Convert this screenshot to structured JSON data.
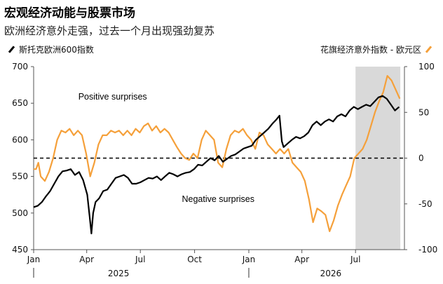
{
  "title": "宏观经济动能与股票市场",
  "subtitle": "欧洲经济意外走强，过去一个月出现强劲复苏",
  "legend": {
    "left_label": "斯托克欧洲600指数",
    "right_label": "花旗经济意外指数 - 欧元区"
  },
  "colors": {
    "stoxx": "#000000",
    "citi": "#f5a03a",
    "shade": "#d9d9d9",
    "zero_line": "#000000"
  },
  "chart_data": {
    "type": "line",
    "x_tick_labels": [
      "Jan",
      "Apr",
      "Jul",
      "Oct",
      "Jan",
      "Apr",
      "Jul"
    ],
    "x_tick_dates": [
      "2025-01-01",
      "2025-04-01",
      "2025-07-01",
      "2025-10-01",
      "2026-01-01",
      "2026-04-01",
      "2026-07-01"
    ],
    "year_labels": [
      "2025",
      "2026"
    ],
    "y_left": {
      "ticks": [
        450,
        500,
        550,
        600,
        650,
        700
      ],
      "range": [
        450,
        700
      ]
    },
    "y_right": {
      "ticks": [
        -100,
        -50,
        0,
        50,
        100
      ],
      "range": [
        -100,
        100
      ]
    },
    "shaded_period": [
      "2026-07-01",
      "2026-09-15"
    ],
    "reference_line": {
      "axis": "right",
      "value": 0,
      "style": "dashed"
    },
    "annotations": [
      {
        "text": "Positive surprises",
        "x": "2025-05-15",
        "y_right": 64
      },
      {
        "text": "Negative surprises",
        "x": "2025-11-10",
        "y_right": -48
      }
    ],
    "series": [
      {
        "name": "斯托克欧洲600指数",
        "axis": "left",
        "points": [
          [
            "2025-01-01",
            508
          ],
          [
            "2025-01-08",
            510
          ],
          [
            "2025-01-15",
            515
          ],
          [
            "2025-01-22",
            523
          ],
          [
            "2025-01-29",
            530
          ],
          [
            "2025-02-05",
            540
          ],
          [
            "2025-02-12",
            550
          ],
          [
            "2025-02-19",
            557
          ],
          [
            "2025-02-26",
            558
          ],
          [
            "2025-03-05",
            560
          ],
          [
            "2025-03-12",
            552
          ],
          [
            "2025-03-19",
            556
          ],
          [
            "2025-03-26",
            545
          ],
          [
            "2025-04-02",
            525
          ],
          [
            "2025-04-06",
            495
          ],
          [
            "2025-04-09",
            472
          ],
          [
            "2025-04-12",
            500
          ],
          [
            "2025-04-16",
            515
          ],
          [
            "2025-04-22",
            520
          ],
          [
            "2025-04-29",
            530
          ],
          [
            "2025-05-06",
            532
          ],
          [
            "2025-05-13",
            540
          ],
          [
            "2025-05-20",
            548
          ],
          [
            "2025-05-27",
            550
          ],
          [
            "2025-06-03",
            552
          ],
          [
            "2025-06-10",
            548
          ],
          [
            "2025-06-17",
            540
          ],
          [
            "2025-06-24",
            540
          ],
          [
            "2025-07-01",
            542
          ],
          [
            "2025-07-08",
            545
          ],
          [
            "2025-07-15",
            548
          ],
          [
            "2025-07-22",
            547
          ],
          [
            "2025-07-29",
            550
          ],
          [
            "2025-08-05",
            545
          ],
          [
            "2025-08-12",
            550
          ],
          [
            "2025-08-19",
            555
          ],
          [
            "2025-08-26",
            553
          ],
          [
            "2025-09-02",
            550
          ],
          [
            "2025-09-09",
            553
          ],
          [
            "2025-09-16",
            555
          ],
          [
            "2025-09-23",
            556
          ],
          [
            "2025-09-30",
            560
          ],
          [
            "2025-10-07",
            566
          ],
          [
            "2025-10-14",
            565
          ],
          [
            "2025-10-21",
            570
          ],
          [
            "2025-10-28",
            575
          ],
          [
            "2025-11-04",
            572
          ],
          [
            "2025-11-11",
            578
          ],
          [
            "2025-11-18",
            570
          ],
          [
            "2025-11-25",
            574
          ],
          [
            "2025-12-02",
            578
          ],
          [
            "2025-12-09",
            580
          ],
          [
            "2025-12-16",
            584
          ],
          [
            "2025-12-23",
            588
          ],
          [
            "2025-12-30",
            590
          ],
          [
            "2026-01-06",
            592
          ],
          [
            "2026-01-13",
            600
          ],
          [
            "2026-01-20",
            605
          ],
          [
            "2026-01-27",
            610
          ],
          [
            "2026-02-03",
            615
          ],
          [
            "2026-02-10",
            622
          ],
          [
            "2026-02-17",
            628
          ],
          [
            "2026-02-22",
            633
          ],
          [
            "2026-02-26",
            598
          ],
          [
            "2026-03-01",
            590
          ],
          [
            "2026-03-08",
            595
          ],
          [
            "2026-03-15",
            600
          ],
          [
            "2026-03-22",
            604
          ],
          [
            "2026-03-29",
            602
          ],
          [
            "2026-04-05",
            605
          ],
          [
            "2026-04-12",
            610
          ],
          [
            "2026-04-19",
            620
          ],
          [
            "2026-04-26",
            625
          ],
          [
            "2026-05-03",
            620
          ],
          [
            "2026-05-10",
            625
          ],
          [
            "2026-05-17",
            628
          ],
          [
            "2026-05-24",
            625
          ],
          [
            "2026-05-31",
            632
          ],
          [
            "2026-06-07",
            635
          ],
          [
            "2026-06-14",
            632
          ],
          [
            "2026-06-21",
            640
          ],
          [
            "2026-06-28",
            645
          ],
          [
            "2026-07-05",
            642
          ],
          [
            "2026-07-12",
            645
          ],
          [
            "2026-07-19",
            648
          ],
          [
            "2026-07-26",
            646
          ],
          [
            "2026-08-02",
            652
          ],
          [
            "2026-08-09",
            658
          ],
          [
            "2026-08-16",
            660
          ],
          [
            "2026-08-23",
            656
          ],
          [
            "2026-08-30",
            648
          ],
          [
            "2026-09-06",
            640
          ],
          [
            "2026-09-13",
            645
          ]
        ]
      },
      {
        "name": "花旗经济意外指数 - 欧元区",
        "axis": "right",
        "points": [
          [
            "2025-01-01",
            -12
          ],
          [
            "2025-01-05",
            -12
          ],
          [
            "2025-01-09",
            -5
          ],
          [
            "2025-01-13",
            -20
          ],
          [
            "2025-01-20",
            -25
          ],
          [
            "2025-01-27",
            -15
          ],
          [
            "2025-02-03",
            0
          ],
          [
            "2025-02-10",
            20
          ],
          [
            "2025-02-17",
            30
          ],
          [
            "2025-02-24",
            28
          ],
          [
            "2025-03-03",
            32
          ],
          [
            "2025-03-10",
            25
          ],
          [
            "2025-03-17",
            30
          ],
          [
            "2025-03-24",
            25
          ],
          [
            "2025-03-31",
            5
          ],
          [
            "2025-04-07",
            -20
          ],
          [
            "2025-04-14",
            -5
          ],
          [
            "2025-04-21",
            15
          ],
          [
            "2025-04-28",
            25
          ],
          [
            "2025-05-05",
            25
          ],
          [
            "2025-05-12",
            30
          ],
          [
            "2025-05-19",
            28
          ],
          [
            "2025-05-26",
            30
          ],
          [
            "2025-06-02",
            25
          ],
          [
            "2025-06-09",
            30
          ],
          [
            "2025-06-16",
            25
          ],
          [
            "2025-06-23",
            32
          ],
          [
            "2025-06-30",
            28
          ],
          [
            "2025-07-07",
            35
          ],
          [
            "2025-07-14",
            38
          ],
          [
            "2025-07-21",
            30
          ],
          [
            "2025-07-28",
            35
          ],
          [
            "2025-08-04",
            28
          ],
          [
            "2025-08-11",
            32
          ],
          [
            "2025-08-18",
            28
          ],
          [
            "2025-08-25",
            20
          ],
          [
            "2025-09-01",
            12
          ],
          [
            "2025-09-08",
            5
          ],
          [
            "2025-09-15",
            0
          ],
          [
            "2025-09-22",
            -2
          ],
          [
            "2025-09-29",
            5
          ],
          [
            "2025-10-06",
            0
          ],
          [
            "2025-10-13",
            20
          ],
          [
            "2025-10-20",
            30
          ],
          [
            "2025-10-27",
            25
          ],
          [
            "2025-11-03",
            20
          ],
          [
            "2025-11-10",
            -5
          ],
          [
            "2025-11-17",
            -10
          ],
          [
            "2025-11-24",
            10
          ],
          [
            "2025-12-01",
            25
          ],
          [
            "2025-12-08",
            30
          ],
          [
            "2025-12-15",
            28
          ],
          [
            "2025-12-22",
            32
          ],
          [
            "2025-12-29",
            25
          ],
          [
            "2026-01-05",
            20
          ],
          [
            "2026-01-12",
            10
          ],
          [
            "2026-01-19",
            28
          ],
          [
            "2026-01-26",
            25
          ],
          [
            "2026-02-02",
            15
          ],
          [
            "2026-02-09",
            10
          ],
          [
            "2026-02-16",
            5
          ],
          [
            "2026-02-23",
            10
          ],
          [
            "2026-03-02",
            5
          ],
          [
            "2026-03-09",
            10
          ],
          [
            "2026-03-16",
            -5
          ],
          [
            "2026-03-23",
            -10
          ],
          [
            "2026-03-30",
            -15
          ],
          [
            "2026-04-06",
            -25
          ],
          [
            "2026-04-13",
            -45
          ],
          [
            "2026-04-20",
            -70
          ],
          [
            "2026-04-27",
            -55
          ],
          [
            "2026-05-04",
            -58
          ],
          [
            "2026-05-11",
            -62
          ],
          [
            "2026-05-18",
            -80
          ],
          [
            "2026-05-25",
            -68
          ],
          [
            "2026-06-01",
            -52
          ],
          [
            "2026-06-08",
            -40
          ],
          [
            "2026-06-15",
            -30
          ],
          [
            "2026-06-22",
            -20
          ],
          [
            "2026-06-29",
            0
          ],
          [
            "2026-07-06",
            5
          ],
          [
            "2026-07-13",
            10
          ],
          [
            "2026-07-20",
            20
          ],
          [
            "2026-07-27",
            35
          ],
          [
            "2026-08-03",
            50
          ],
          [
            "2026-08-10",
            62
          ],
          [
            "2026-08-17",
            72
          ],
          [
            "2026-08-24",
            90
          ],
          [
            "2026-08-31",
            85
          ],
          [
            "2026-09-07",
            75
          ],
          [
            "2026-09-14",
            65
          ]
        ]
      }
    ]
  }
}
